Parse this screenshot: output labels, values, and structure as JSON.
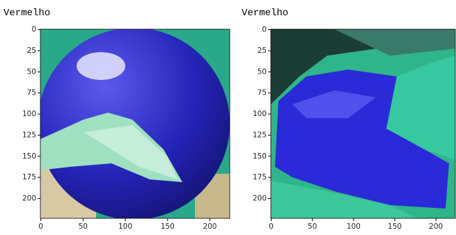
{
  "chart_data": [
    {
      "type": "image",
      "label": "Vermelho",
      "xlim": [
        -0.5,
        223.5
      ],
      "ylim": [
        223.5,
        -0.5
      ],
      "xticks": [
        0,
        50,
        100,
        150,
        200
      ],
      "yticks": [
        0,
        25,
        50,
        75,
        100,
        125,
        150,
        175,
        200
      ]
    },
    {
      "type": "image",
      "label": "Vermelho",
      "xlim": [
        -0.5,
        223.5
      ],
      "ylim": [
        223.5,
        -0.5
      ],
      "xticks": [
        0,
        50,
        100,
        150,
        200
      ],
      "yticks": [
        0,
        25,
        50,
        75,
        100,
        125,
        150,
        175,
        200
      ]
    }
  ]
}
